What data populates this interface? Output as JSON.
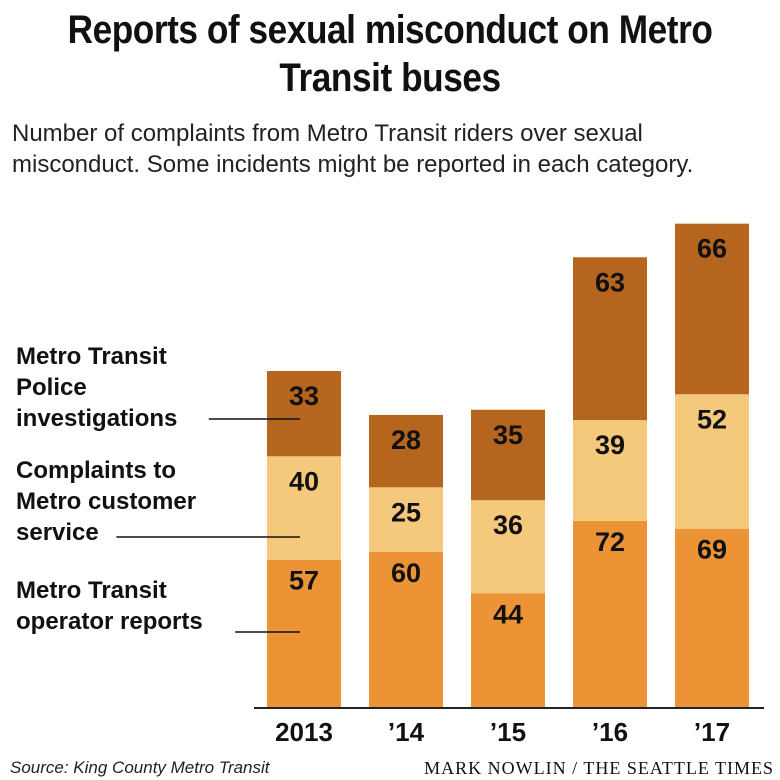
{
  "chart_data": {
    "type": "bar",
    "stacked": true,
    "title": "Reports of sexual misconduct on Metro Transit buses",
    "subtitle": "Number of complaints from Metro Transit riders over sexual misconduct. Some incidents might be reported in each category.",
    "categories": [
      "2013",
      "’14",
      "’15",
      "’16",
      "’17"
    ],
    "series": [
      {
        "name": "Metro Transit operator reports",
        "values": [
          57,
          60,
          44,
          72,
          69
        ],
        "color": "#ec9336"
      },
      {
        "name": "Complaints to Metro customer service",
        "values": [
          40,
          25,
          36,
          39,
          52
        ],
        "color": "#f5c97c"
      },
      {
        "name": "Metro Transit Police investigations",
        "values": [
          33,
          28,
          35,
          63,
          66
        ],
        "color": "#b5651d"
      }
    ],
    "legend_labels": [
      [
        "Metro Transit",
        "operator reports"
      ],
      [
        "Complaints to",
        "Metro customer",
        "service"
      ],
      [
        "Metro Transit",
        "Police",
        "investigations"
      ]
    ],
    "legend_placement": "left",
    "grid": false,
    "ylim": [
      0,
      187
    ]
  },
  "footer": {
    "source": "Source: King County Metro Transit",
    "credit": "MARK NOWLIN / THE SEATTLE TIMES"
  }
}
